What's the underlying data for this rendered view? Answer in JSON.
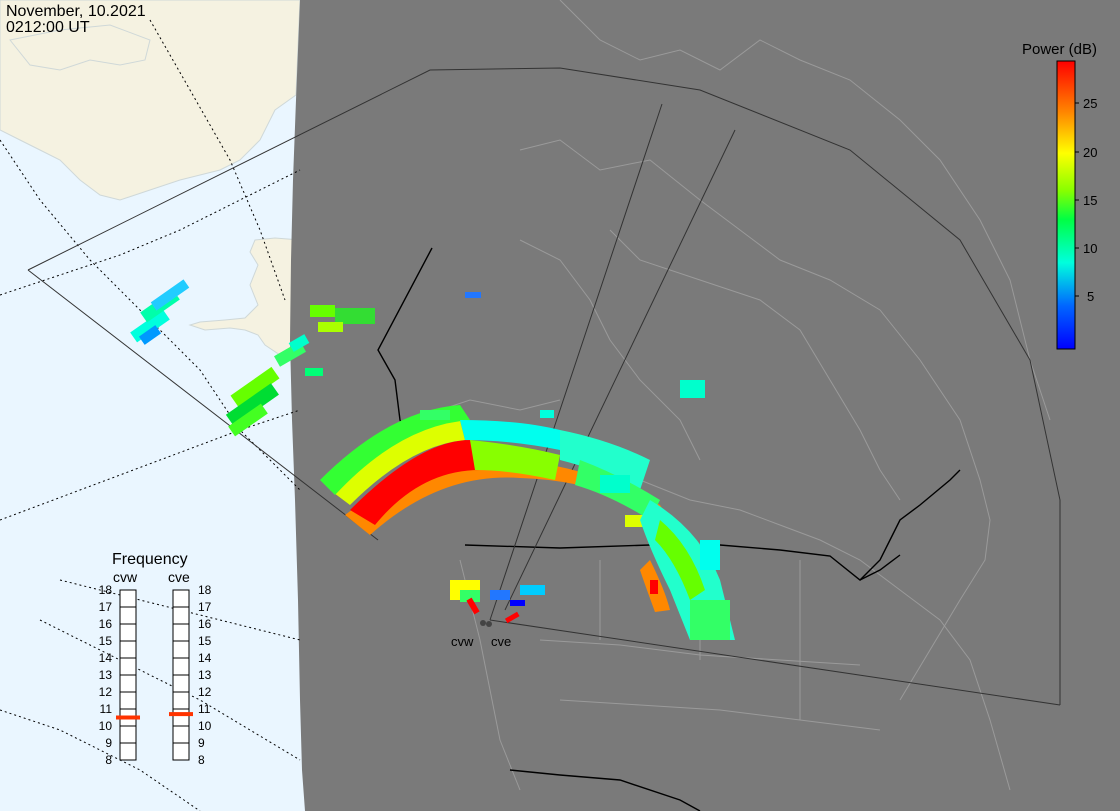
{
  "header": {
    "date": "November, 10.2021",
    "time": "0212:00 UT"
  },
  "colorbar": {
    "title": "Power (dB)",
    "ticks": [
      "25",
      "20",
      "15",
      "10",
      "5"
    ],
    "colors": [
      "#ff0000",
      "#ff8800",
      "#ffff00",
      "#88ff00",
      "#00ff44",
      "#00ffdd",
      "#0066ff",
      "#0000ff"
    ]
  },
  "frequency_panel": {
    "title": "Frequency",
    "radars": [
      {
        "code": "cvw",
        "value_mhz": 10.5
      },
      {
        "code": "cve",
        "value_mhz": 10.7
      }
    ],
    "scale": [
      "18",
      "17",
      "16",
      "15",
      "14",
      "13",
      "12",
      "11",
      "10",
      "9",
      "8"
    ],
    "marker_color": "#ff3300"
  },
  "map": {
    "night_color": "#7a7a7a",
    "day_color": "#eaf6ff",
    "land_color": "#f5f2e1",
    "sites": [
      {
        "code": "cvw"
      },
      {
        "code": "cve"
      }
    ]
  }
}
